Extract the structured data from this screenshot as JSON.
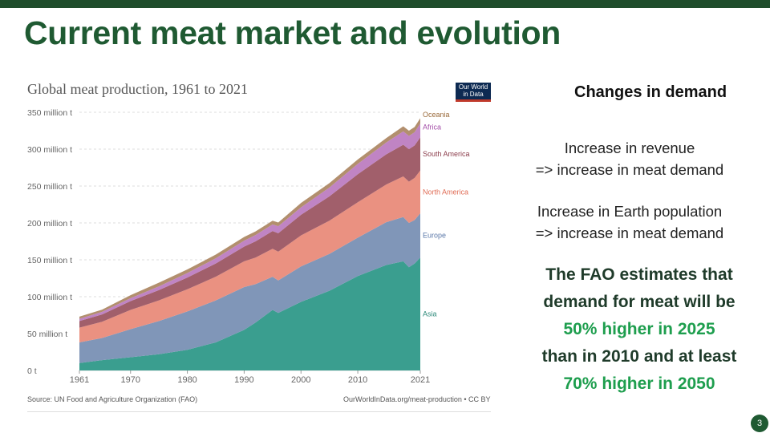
{
  "slide": {
    "title": "Current meat market and evolution",
    "page_number": "3",
    "colors": {
      "top_bar": "#1f4d2b",
      "title": "#1f5a32",
      "highlight": "#1e9e4e"
    }
  },
  "logo": {
    "line1": "Our World",
    "line2": "in Data"
  },
  "sidebar": {
    "heading": "Changes in demand",
    "points": [
      {
        "line1": "Increase in revenue",
        "line2": "=> increase in meat demand"
      },
      {
        "line1": "Increase in Earth population",
        "line2": "=> increase in meat demand"
      }
    ],
    "fao": {
      "line1": "The FAO estimates that",
      "line2": "demand for meat will be",
      "line3": "50% higher in 2025",
      "line4": "than in 2010 and at least",
      "line5": "70% higher in 2050"
    }
  },
  "chart_data": {
    "type": "area",
    "stacked": true,
    "title": "Global meat production, 1961 to 2021",
    "source": "Source: UN Food and Agriculture Organization (FAO)",
    "credit": "OurWorldInData.org/meat-production • CC BY",
    "ylim": [
      0,
      350
    ],
    "y_ticks": [
      0,
      50,
      100,
      150,
      200,
      250,
      300,
      350
    ],
    "y_tick_labels": [
      "0 t",
      "50 million t",
      "100 million t",
      "150 million t",
      "200 million t",
      "250 million t",
      "300 million t",
      "350 million t"
    ],
    "xlim": [
      1961,
      2021
    ],
    "x_ticks": [
      1961,
      1970,
      1980,
      1990,
      2000,
      2010,
      2021
    ],
    "x_tick_labels": [
      "1961",
      "1970",
      "1980",
      "1990",
      "2000",
      "2010",
      "2021"
    ],
    "grid": true,
    "x": [
      1961,
      1965,
      1970,
      1975,
      1980,
      1985,
      1990,
      1992,
      1995,
      1996,
      2000,
      2005,
      2010,
      2015,
      2018,
      2019,
      2020,
      2021
    ],
    "series": [
      {
        "name": "Asia",
        "color": "#3a9e8f",
        "values": [
          10,
          14,
          18,
          22,
          28,
          38,
          55,
          65,
          82,
          78,
          93,
          108,
          128,
          143,
          148,
          140,
          145,
          153
        ]
      },
      {
        "name": "Europe",
        "color": "#8096b8",
        "values": [
          28,
          30,
          38,
          45,
          52,
          57,
          58,
          52,
          45,
          44,
          48,
          50,
          52,
          58,
          60,
          60,
          59,
          60
        ]
      },
      {
        "name": "North America",
        "color": "#ea9181",
        "values": [
          20,
          22,
          26,
          28,
          30,
          32,
          35,
          36,
          38,
          39,
          42,
          45,
          48,
          51,
          55,
          56,
          57,
          58
        ]
      },
      {
        "name": "South America",
        "color": "#a15f6b",
        "values": [
          9,
          10,
          12,
          14,
          16,
          18,
          20,
          22,
          24,
          25,
          28,
          33,
          38,
          41,
          43,
          44,
          44,
          45
        ]
      },
      {
        "name": "Africa",
        "color": "#c084c4",
        "values": [
          3,
          3.5,
          4,
          5,
          6,
          7,
          8,
          8.5,
          9,
          9.5,
          10,
          12,
          14,
          16,
          18,
          18,
          18,
          19
        ]
      },
      {
        "name": "Oceania",
        "color": "#b28f6e",
        "values": [
          3,
          3,
          4,
          5,
          5,
          5,
          5,
          5,
          5,
          5,
          6,
          6,
          6,
          6,
          7,
          7,
          7,
          7
        ]
      }
    ]
  }
}
